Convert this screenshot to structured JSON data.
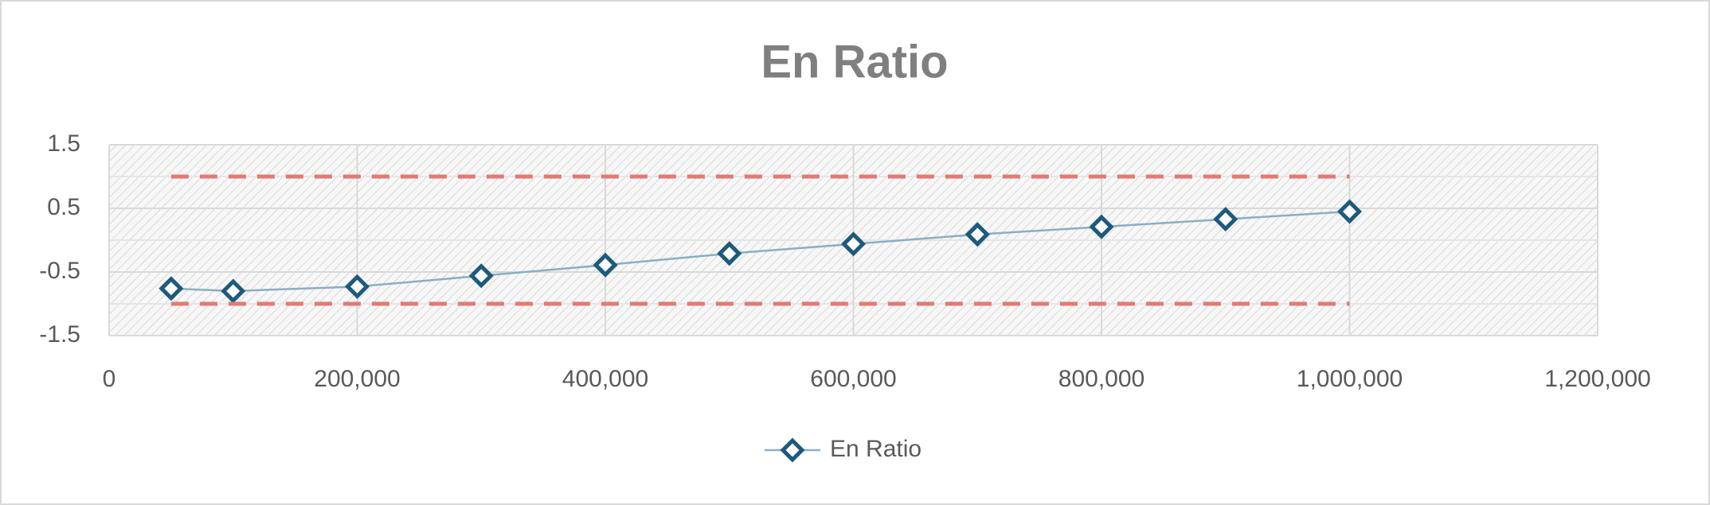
{
  "chart_data": {
    "type": "scatter-line",
    "title": "En Ratio",
    "x": [
      50000,
      100000,
      200000,
      300000,
      400000,
      500000,
      600000,
      700000,
      800000,
      900000,
      1000000
    ],
    "series": [
      {
        "name": "En Ratio",
        "color": "#1d5a7b",
        "line_color": "#8aaec3",
        "marker": "diamond",
        "values": [
          -0.76,
          -0.8,
          -0.73,
          -0.56,
          -0.39,
          -0.21,
          -0.06,
          0.09,
          0.21,
          0.33,
          0.45
        ]
      },
      {
        "color": "#e07b74",
        "dash": true,
        "marker": "none",
        "values": [
          1,
          1,
          1,
          1,
          1,
          1,
          1,
          1,
          1,
          1,
          1
        ]
      },
      {
        "color": "#e07b74",
        "dash": true,
        "marker": "none",
        "values": [
          -1,
          -1,
          -1,
          -1,
          -1,
          -1,
          -1,
          -1,
          -1,
          -1,
          -1
        ]
      }
    ],
    "xlim": [
      0,
      1200000
    ],
    "xticks": [
      0,
      {
        "value": 200000,
        "label": "200,000"
      },
      {
        "value": 400000,
        "label": "400,000"
      },
      {
        "value": 600000,
        "label": "600,000"
      },
      {
        "value": 800000,
        "label": "800,000"
      },
      {
        "value": 1000000,
        "label": "1,000,000"
      },
      {
        "value": 1200000,
        "label": "1,200,000"
      }
    ],
    "ylim": [
      -1.5,
      1.5
    ],
    "yticks": [
      -1.5,
      -0.5,
      0.5,
      1.5
    ],
    "minor_yticks": [
      -1,
      0,
      1
    ],
    "grid": true,
    "legend": "bottom"
  }
}
